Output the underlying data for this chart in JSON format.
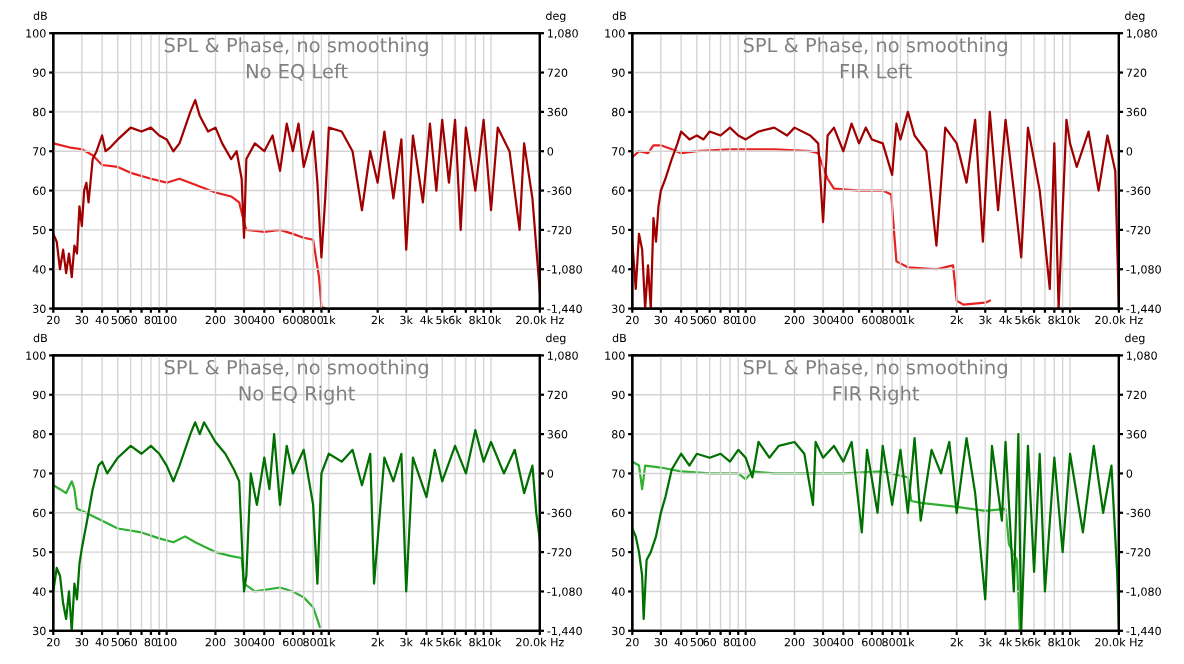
{
  "chart_data": [
    {
      "type": "line",
      "title": "SPL & Phase, no smoothing",
      "subtitle": "No EQ Left",
      "ylabel": "dB",
      "y2label": "deg",
      "log": "x",
      "grid": true,
      "legend": false,
      "xlim": [
        20,
        20000
      ],
      "xticks": [
        20,
        30,
        40,
        50,
        60,
        {
          "value": 70,
          "label": null
        },
        80,
        {
          "value": 90,
          "label": null
        },
        100,
        200,
        300,
        400,
        {
          "value": 500,
          "label": null
        },
        600,
        {
          "value": 700,
          "label": null
        },
        800,
        {
          "value": 900,
          "label": null
        },
        {
          "value": 1000,
          "label": "1k"
        },
        {
          "value": 2000,
          "label": "2k"
        },
        {
          "value": 3000,
          "label": "3k"
        },
        {
          "value": 4000,
          "label": "4k"
        },
        {
          "value": 5000,
          "label": "5k"
        },
        {
          "value": 6000,
          "label": "6k"
        },
        {
          "value": 7000,
          "label": null
        },
        {
          "value": 8000,
          "label": "8k"
        },
        {
          "value": 9000,
          "label": null
        },
        {
          "value": 10000,
          "label": "10k"
        },
        {
          "value": 20000,
          "label": "20.0k Hz"
        }
      ],
      "ylim": [
        30,
        100
      ],
      "yticks": [
        30,
        40,
        50,
        60,
        70,
        80,
        90,
        100
      ],
      "y2lim": [
        -1440,
        1080
      ],
      "y2ticks": [
        {
          "value": -1440,
          "label": "-1,440"
        },
        {
          "value": -1080,
          "label": "-1,080"
        },
        -720,
        -360,
        0,
        360,
        720,
        {
          "value": 1080,
          "label": "1,080"
        }
      ],
      "series": [
        {
          "color": "#a00000",
          "x": [
            20,
            21,
            22,
            23,
            24,
            25,
            26,
            27,
            28,
            29,
            30,
            31,
            32,
            33,
            35,
            37,
            40,
            42,
            45,
            50,
            60,
            70,
            80,
            90,
            100,
            110,
            120,
            140,
            150,
            160,
            180,
            200,
            220,
            250,
            270,
            290,
            300,
            310,
            350,
            400,
            450,
            500,
            550,
            600,
            650,
            700,
            800,
            850,
            900,
            950,
            1000,
            1200,
            1400,
            1600,
            1800,
            2000,
            2200,
            2500,
            2800,
            3000,
            3300,
            3800,
            4200,
            4600,
            5000,
            5500,
            6000,
            6500,
            7000,
            8000,
            9000,
            10000,
            11000,
            13000,
            15000,
            16000,
            18000,
            20000
          ],
          "values": [
            49,
            47,
            40,
            45,
            39,
            44,
            38,
            46,
            44,
            56,
            51,
            60,
            62,
            57,
            68,
            70,
            74,
            70,
            71,
            73,
            76,
            75,
            76,
            74,
            73,
            70,
            72,
            80,
            83,
            79,
            75,
            76,
            72,
            68,
            70,
            63,
            48,
            68,
            72,
            70,
            74,
            65,
            77,
            70,
            77,
            66,
            75,
            62,
            43,
            58,
            76,
            75,
            70,
            55,
            70,
            62,
            75,
            58,
            73,
            45,
            74,
            57,
            77,
            60,
            78,
            62,
            78,
            50,
            76,
            60,
            78,
            55,
            76,
            70,
            50,
            72,
            58,
            34
          ]
        },
        {
          "color": "#e82020",
          "axis": "y2",
          "x": [
            20,
            25,
            30,
            35,
            40,
            50,
            60,
            80,
            100,
            120,
            150,
            200,
            250,
            280,
            300,
            310,
            400,
            500,
            600,
            700,
            800,
            870,
            900,
            950
          ],
          "values": [
            72,
            36,
            18,
            -36,
            -126,
            -144,
            -198,
            -252,
            -288,
            -252,
            -306,
            -378,
            -414,
            -468,
            -648,
            -720,
            -738,
            -720,
            -756,
            -792,
            -810,
            -1152,
            -1422,
            -1440
          ]
        }
      ]
    },
    {
      "type": "line",
      "title": "SPL & Phase, no smoothing",
      "subtitle": "FIR Left",
      "ylabel": "dB",
      "y2label": "deg",
      "log": "x",
      "grid": true,
      "legend": false,
      "xlim": [
        20,
        20000
      ],
      "xticks": [
        20,
        30,
        40,
        50,
        60,
        {
          "value": 70,
          "label": null
        },
        80,
        {
          "value": 90,
          "label": null
        },
        100,
        200,
        300,
        400,
        {
          "value": 500,
          "label": null
        },
        600,
        {
          "value": 700,
          "label": null
        },
        800,
        {
          "value": 900,
          "label": null
        },
        {
          "value": 1000,
          "label": "1k"
        },
        {
          "value": 2000,
          "label": "2k"
        },
        {
          "value": 3000,
          "label": "3k"
        },
        {
          "value": 4000,
          "label": "4k"
        },
        {
          "value": 5000,
          "label": "5k"
        },
        {
          "value": 6000,
          "label": "6k"
        },
        {
          "value": 7000,
          "label": null
        },
        {
          "value": 8000,
          "label": "8k"
        },
        {
          "value": 9000,
          "label": null
        },
        {
          "value": 10000,
          "label": "10k"
        },
        {
          "value": 20000,
          "label": "20.0k Hz"
        }
      ],
      "ylim": [
        30,
        100
      ],
      "yticks": [
        30,
        40,
        50,
        60,
        70,
        80,
        90,
        100
      ],
      "y2lim": [
        -1440,
        1080
      ],
      "y2ticks": [
        {
          "value": -1440,
          "label": "-1,440"
        },
        {
          "value": -1080,
          "label": "-1,080"
        },
        -720,
        -360,
        0,
        360,
        720,
        {
          "value": 1080,
          "label": "1,080"
        }
      ],
      "series": [
        {
          "color": "#a00000",
          "x": [
            20,
            21,
            22,
            23,
            24,
            25,
            26,
            27,
            28,
            29,
            30,
            32,
            35,
            38,
            40,
            45,
            50,
            55,
            60,
            70,
            80,
            90,
            100,
            120,
            150,
            180,
            200,
            250,
            280,
            300,
            320,
            350,
            400,
            450,
            500,
            550,
            600,
            700,
            800,
            850,
            900,
            1000,
            1100,
            1300,
            1500,
            1700,
            2000,
            2300,
            2600,
            2900,
            3200,
            3600,
            4000,
            4500,
            5000,
            5500,
            6500,
            7500,
            8000,
            8500,
            9500,
            10000,
            11000,
            13000,
            15000,
            17000,
            19000,
            20000
          ],
          "values": [
            47,
            35,
            49,
            45,
            30,
            41,
            30,
            53,
            47,
            56,
            60,
            63,
            68,
            72,
            75,
            73,
            74,
            73,
            75,
            74,
            76,
            74,
            73,
            75,
            76,
            74,
            76,
            74,
            72,
            52,
            74,
            76,
            70,
            77,
            72,
            76,
            73,
            72,
            64,
            77,
            73,
            80,
            74,
            70,
            46,
            76,
            72,
            62,
            78,
            47,
            80,
            55,
            78,
            60,
            43,
            76,
            60,
            35,
            72,
            30,
            78,
            72,
            66,
            75,
            60,
            74,
            65,
            30
          ]
        },
        {
          "color": "#e82020",
          "axis": "y2",
          "x": [
            20,
            22,
            25,
            27,
            30,
            35,
            40,
            50,
            80,
            150,
            250,
            280,
            300,
            320,
            350,
            500,
            700,
            790,
            820,
            850,
            1000,
            1500,
            1900,
            2000,
            2200,
            3000,
            3200
          ],
          "values": [
            -54,
            0,
            -18,
            54,
            54,
            18,
            -18,
            0,
            18,
            18,
            0,
            -18,
            -144,
            -252,
            -342,
            -360,
            -360,
            -396,
            -720,
            -1008,
            -1062,
            -1080,
            -1044,
            -1368,
            -1404,
            -1386,
            -1368
          ]
        }
      ]
    },
    {
      "type": "line",
      "title": "SPL & Phase, no smoothing",
      "subtitle": "No EQ Right",
      "ylabel": "dB",
      "y2label": "deg",
      "log": "x",
      "grid": true,
      "legend": false,
      "xlim": [
        20,
        20000
      ],
      "xticks": [
        20,
        30,
        40,
        50,
        60,
        {
          "value": 70,
          "label": null
        },
        80,
        {
          "value": 90,
          "label": null
        },
        100,
        200,
        300,
        400,
        {
          "value": 500,
          "label": null
        },
        600,
        {
          "value": 700,
          "label": null
        },
        800,
        {
          "value": 900,
          "label": null
        },
        {
          "value": 1000,
          "label": "1k"
        },
        {
          "value": 2000,
          "label": "2k"
        },
        {
          "value": 3000,
          "label": "3k"
        },
        {
          "value": 4000,
          "label": "4k"
        },
        {
          "value": 5000,
          "label": "5k"
        },
        {
          "value": 6000,
          "label": "6k"
        },
        {
          "value": 7000,
          "label": null
        },
        {
          "value": 8000,
          "label": "8k"
        },
        {
          "value": 9000,
          "label": null
        },
        {
          "value": 10000,
          "label": "10k"
        },
        {
          "value": 20000,
          "label": "20.0k Hz"
        }
      ],
      "ylim": [
        30,
        100
      ],
      "yticks": [
        30,
        40,
        50,
        60,
        70,
        80,
        90,
        100
      ],
      "y2lim": [
        -1440,
        1080
      ],
      "y2ticks": [
        {
          "value": -1440,
          "label": "-1,440"
        },
        {
          "value": -1080,
          "label": "-1,080"
        },
        -720,
        -360,
        0,
        360,
        720,
        {
          "value": 1080,
          "label": "1,080"
        }
      ],
      "series": [
        {
          "color": "#007000",
          "x": [
            20,
            21,
            22,
            23,
            24,
            25,
            26,
            27,
            28,
            29,
            30,
            32,
            35,
            38,
            40,
            43,
            50,
            60,
            70,
            80,
            90,
            100,
            110,
            120,
            140,
            150,
            160,
            170,
            200,
            230,
            260,
            280,
            300,
            310,
            330,
            360,
            400,
            430,
            460,
            500,
            550,
            600,
            700,
            800,
            850,
            900,
            1000,
            1200,
            1400,
            1600,
            1800,
            1900,
            2200,
            2500,
            2800,
            3000,
            3300,
            4000,
            4500,
            5000,
            6000,
            7000,
            8000,
            9000,
            10000,
            12000,
            14000,
            16000,
            18000,
            19000,
            20000
          ],
          "values": [
            40,
            46,
            44,
            37,
            33,
            40,
            30,
            42,
            38,
            47,
            51,
            57,
            66,
            72,
            73,
            70,
            74,
            77,
            75,
            77,
            75,
            72,
            68,
            72,
            80,
            83,
            80,
            83,
            78,
            75,
            71,
            68,
            40,
            44,
            70,
            62,
            74,
            66,
            80,
            62,
            77,
            70,
            76,
            62,
            42,
            70,
            75,
            73,
            76,
            67,
            75,
            42,
            74,
            68,
            75,
            40,
            74,
            64,
            76,
            68,
            77,
            70,
            81,
            73,
            78,
            70,
            76,
            65,
            72,
            60,
            53
          ]
        },
        {
          "color": "#30b030",
          "axis": "y2",
          "x": [
            20,
            22,
            24,
            26,
            27,
            28,
            30,
            40,
            50,
            70,
            90,
            110,
            130,
            150,
            200,
            250,
            290,
            300,
            350,
            500,
            600,
            700,
            800,
            880
          ],
          "values": [
            -108,
            -144,
            -180,
            -72,
            -144,
            -324,
            -342,
            -432,
            -504,
            -540,
            -594,
            -630,
            -576,
            -630,
            -720,
            -756,
            -774,
            -1008,
            -1080,
            -1044,
            -1080,
            -1134,
            -1224,
            -1404
          ]
        }
      ]
    },
    {
      "type": "line",
      "title": "SPL & Phase, no smoothing",
      "subtitle": "FIR Right",
      "ylabel": "dB",
      "y2label": "deg",
      "log": "x",
      "grid": true,
      "legend": false,
      "xlim": [
        20,
        20000
      ],
      "xticks": [
        20,
        30,
        40,
        50,
        60,
        {
          "value": 70,
          "label": null
        },
        80,
        {
          "value": 90,
          "label": null
        },
        100,
        200,
        300,
        400,
        {
          "value": 500,
          "label": null
        },
        600,
        {
          "value": 700,
          "label": null
        },
        800,
        {
          "value": 900,
          "label": null
        },
        {
          "value": 1000,
          "label": "1k"
        },
        {
          "value": 2000,
          "label": "2k"
        },
        {
          "value": 3000,
          "label": "3k"
        },
        {
          "value": 4000,
          "label": "4k"
        },
        {
          "value": 5000,
          "label": "5k"
        },
        {
          "value": 6000,
          "label": "6k"
        },
        {
          "value": 7000,
          "label": null
        },
        {
          "value": 8000,
          "label": "8k"
        },
        {
          "value": 9000,
          "label": null
        },
        {
          "value": 10000,
          "label": "10k"
        },
        {
          "value": 20000,
          "label": "20.0k Hz"
        }
      ],
      "ylim": [
        30,
        100
      ],
      "yticks": [
        30,
        40,
        50,
        60,
        70,
        80,
        90,
        100
      ],
      "y2lim": [
        -1440,
        1080
      ],
      "y2ticks": [
        {
          "value": -1440,
          "label": "-1,440"
        },
        {
          "value": -1080,
          "label": "-1,080"
        },
        -720,
        -360,
        0,
        360,
        720,
        {
          "value": 1080,
          "label": "1,080"
        }
      ],
      "series": [
        {
          "color": "#007000",
          "x": [
            20,
            21,
            22,
            23,
            23.5,
            24.5,
            26,
            28,
            30,
            32,
            35,
            40,
            45,
            50,
            60,
            70,
            80,
            90,
            100,
            110,
            120,
            140,
            160,
            200,
            230,
            260,
            270,
            300,
            350,
            400,
            450,
            520,
            560,
            650,
            700,
            800,
            900,
            1000,
            1100,
            1200,
            1400,
            1600,
            1800,
            2000,
            2300,
            2600,
            3000,
            3300,
            3800,
            4000,
            4500,
            4800,
            5000,
            5500,
            6000,
            6500,
            7000,
            8000,
            9000,
            10000,
            12000,
            14000,
            16000,
            18000,
            19500,
            20000
          ],
          "values": [
            56,
            54,
            50,
            44,
            33,
            48,
            50,
            54,
            60,
            64,
            71,
            75,
            72,
            75,
            74,
            75,
            73,
            76,
            74,
            69,
            78,
            74,
            77,
            78,
            75,
            62,
            78,
            74,
            77,
            73,
            78,
            55,
            76,
            60,
            77,
            62,
            76,
            60,
            79,
            58,
            76,
            70,
            78,
            60,
            79,
            65,
            38,
            77,
            58,
            78,
            40,
            80,
            30,
            77,
            45,
            75,
            40,
            74,
            50,
            75,
            55,
            77,
            60,
            72,
            45,
            31
          ]
        },
        {
          "color": "#30b030",
          "axis": "y2",
          "x": [
            20,
            22,
            23,
            24,
            30,
            40,
            60,
            90,
            100,
            110,
            150,
            300,
            400,
            700,
            1000,
            1050,
            1200,
            2000,
            3000,
            4000,
            4200,
            4700,
            4900
          ],
          "values": [
            108,
            72,
            -144,
            72,
            54,
            18,
            0,
            0,
            -54,
            18,
            0,
            0,
            0,
            18,
            -36,
            -252,
            -270,
            -306,
            -342,
            -324,
            -648,
            -792,
            -1440
          ]
        }
      ]
    }
  ]
}
